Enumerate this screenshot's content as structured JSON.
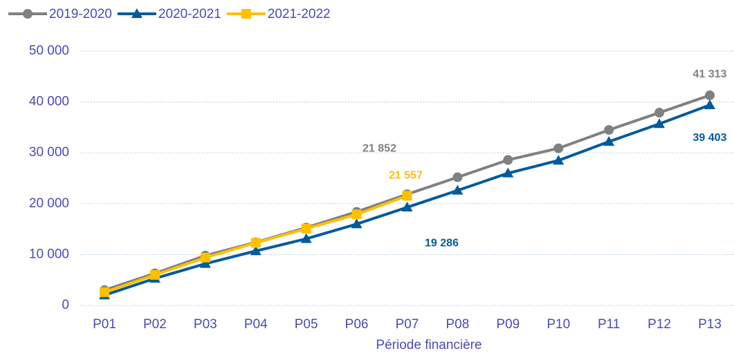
{
  "chart_data": {
    "type": "line",
    "x_label": "Période financière",
    "categories": [
      "P01",
      "P02",
      "P03",
      "P04",
      "P05",
      "P06",
      "P07",
      "P08",
      "P09",
      "P10",
      "P11",
      "P12",
      "P13"
    ],
    "series": [
      {
        "name": "2019-2020",
        "color": "#808080",
        "marker": "circle",
        "values": [
          3000,
          6300,
          9800,
          12400,
          15300,
          18400,
          21852,
          25200,
          28600,
          30900,
          34500,
          37900,
          41313
        ],
        "value_labels": [
          null,
          null,
          null,
          null,
          null,
          null,
          "21 852",
          null,
          null,
          null,
          null,
          null,
          "41 313"
        ]
      },
      {
        "name": "2020-2021",
        "color": "#005a9c",
        "marker": "triangle",
        "values": [
          2000,
          5300,
          8200,
          10700,
          13100,
          16000,
          19286,
          22600,
          26000,
          28500,
          32200,
          35700,
          39403
        ],
        "value_labels": [
          null,
          null,
          null,
          null,
          null,
          null,
          "19 286",
          null,
          null,
          null,
          null,
          null,
          "39 403"
        ]
      },
      {
        "name": "2021-2022",
        "color": "#ffc000",
        "marker": "square",
        "values": [
          2600,
          6000,
          9400,
          12300,
          15100,
          17900,
          21557,
          null,
          null,
          null,
          null,
          null,
          null
        ],
        "value_labels": [
          null,
          null,
          null,
          null,
          null,
          null,
          "21 557",
          null,
          null,
          null,
          null,
          null,
          null
        ]
      }
    ],
    "ylim": [
      0,
      50000
    ],
    "yticks": [
      0,
      {
        "value": 10000,
        "label": "10 000"
      },
      {
        "value": 20000,
        "label": "20 000"
      },
      {
        "value": 30000,
        "label": "30 000"
      },
      {
        "value": 40000,
        "label": "40 000"
      },
      {
        "value": 50000,
        "label": "50 000"
      }
    ],
    "grid": true,
    "legend": "top-left"
  }
}
